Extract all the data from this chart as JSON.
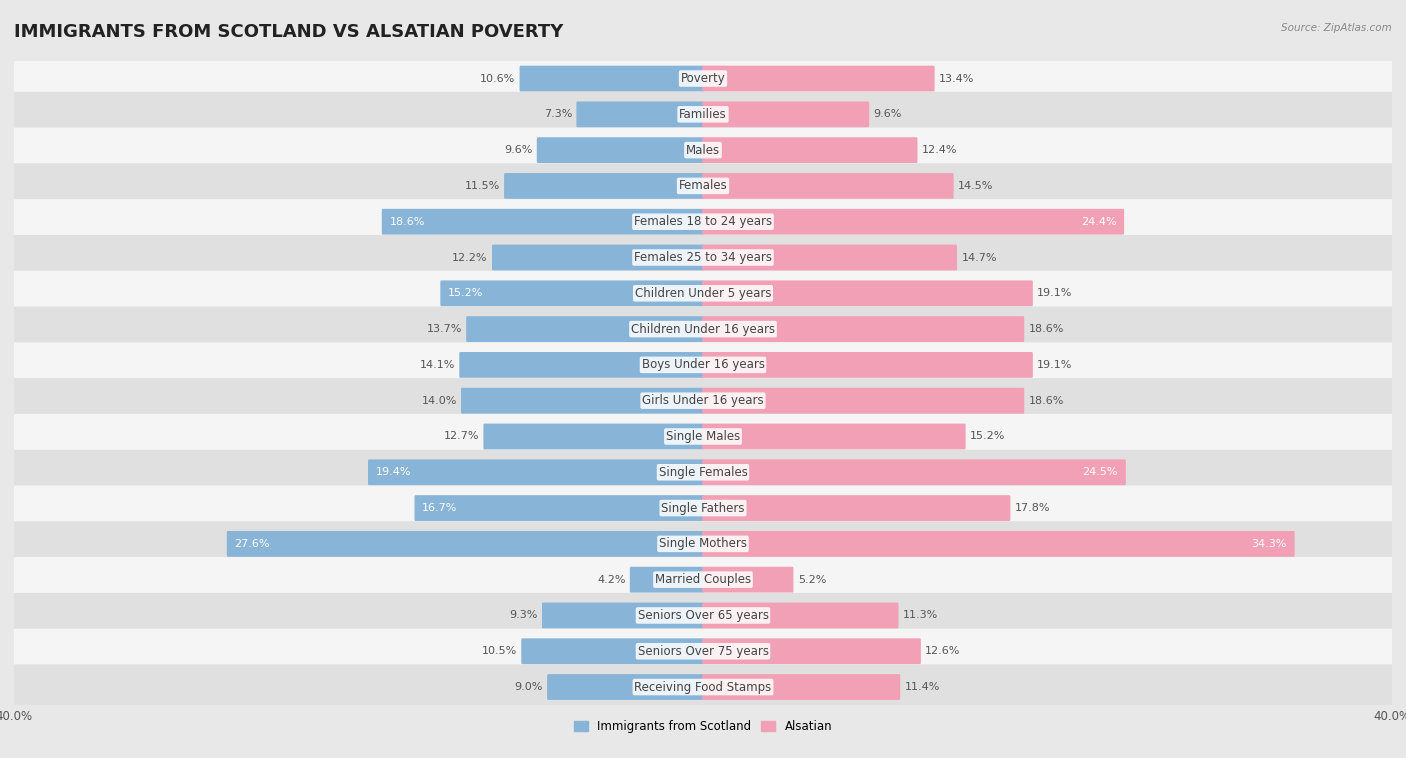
{
  "title": "IMMIGRANTS FROM SCOTLAND VS ALSATIAN POVERTY",
  "source": "Source: ZipAtlas.com",
  "categories": [
    "Poverty",
    "Families",
    "Males",
    "Females",
    "Females 18 to 24 years",
    "Females 25 to 34 years",
    "Children Under 5 years",
    "Children Under 16 years",
    "Boys Under 16 years",
    "Girls Under 16 years",
    "Single Males",
    "Single Females",
    "Single Fathers",
    "Single Mothers",
    "Married Couples",
    "Seniors Over 65 years",
    "Seniors Over 75 years",
    "Receiving Food Stamps"
  ],
  "scotland_values": [
    10.6,
    7.3,
    9.6,
    11.5,
    18.6,
    12.2,
    15.2,
    13.7,
    14.1,
    14.0,
    12.7,
    19.4,
    16.7,
    27.6,
    4.2,
    9.3,
    10.5,
    9.0
  ],
  "alsatian_values": [
    13.4,
    9.6,
    12.4,
    14.5,
    24.4,
    14.7,
    19.1,
    18.6,
    19.1,
    18.6,
    15.2,
    24.5,
    17.8,
    34.3,
    5.2,
    11.3,
    12.6,
    11.4
  ],
  "scotland_color": "#88b4d8",
  "alsatian_color": "#f2a0b5",
  "scotland_label": "Immigrants from Scotland",
  "alsatian_label": "Alsatian",
  "xlim": 40.0,
  "bar_height": 0.62,
  "background_color": "#e8e8e8",
  "row_colors_even": "#f5f5f5",
  "row_colors_odd": "#e0e0e0",
  "title_fontsize": 13,
  "label_fontsize": 8.5,
  "value_fontsize": 8.0,
  "axis_label_fontsize": 8.5,
  "white_text_threshold_scotland": 15.0,
  "white_text_threshold_alsatian": 20.0
}
